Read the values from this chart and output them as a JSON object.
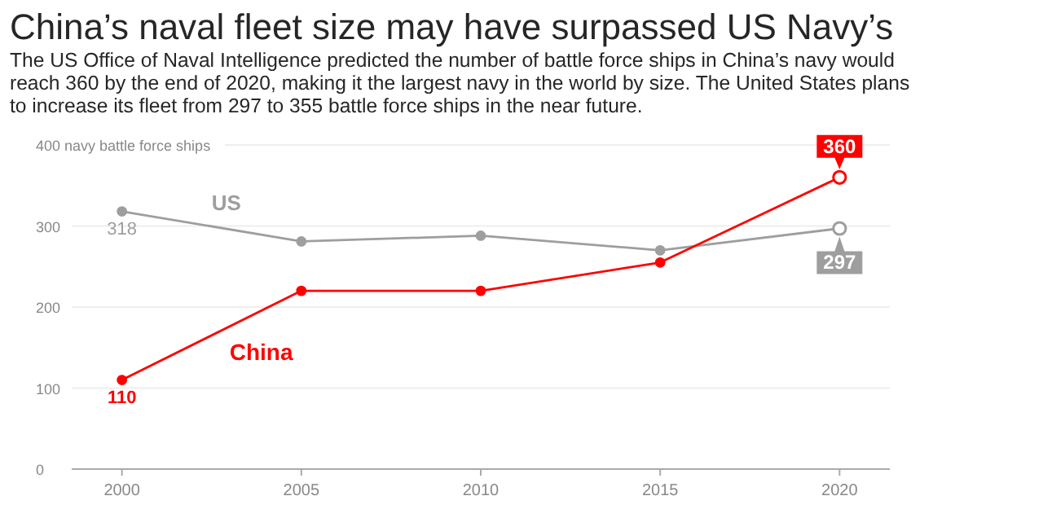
{
  "chart_data": {
    "type": "line",
    "title": "China’s naval fleet size may have surpassed US Navy’s",
    "subtitle": "The US Office of Naval Intelligence predicted the number of battle force ships in China’s navy would reach 360 by the end of 2020, making it the largest navy in the world by size. The United States plans to increase its fleet from 297 to 355 battle force ships in the near future.",
    "x": [
      2000,
      2005,
      2010,
      2015,
      2020
    ],
    "series": [
      {
        "name": "US",
        "color": "#9e9e9e",
        "values": [
          318,
          281,
          288,
          270,
          297
        ],
        "value_labels": [
          "318",
          null,
          null,
          null,
          "297"
        ]
      },
      {
        "name": "China",
        "color": "#ff0000",
        "values": [
          110,
          220,
          220,
          255,
          360
        ],
        "value_labels": [
          "110",
          null,
          null,
          null,
          "360"
        ]
      }
    ],
    "xlim": [
      1998.6,
      2021.4
    ],
    "xticks": [
      2000,
      2005,
      2010,
      2015,
      2020
    ],
    "ylim": [
      0,
      400
    ],
    "yticks": [
      0,
      100,
      200,
      300,
      {
        "value": 400,
        "label": "400 navy battle force ships"
      }
    ],
    "grid": "y",
    "marker": "circle",
    "line_style": "solid"
  }
}
